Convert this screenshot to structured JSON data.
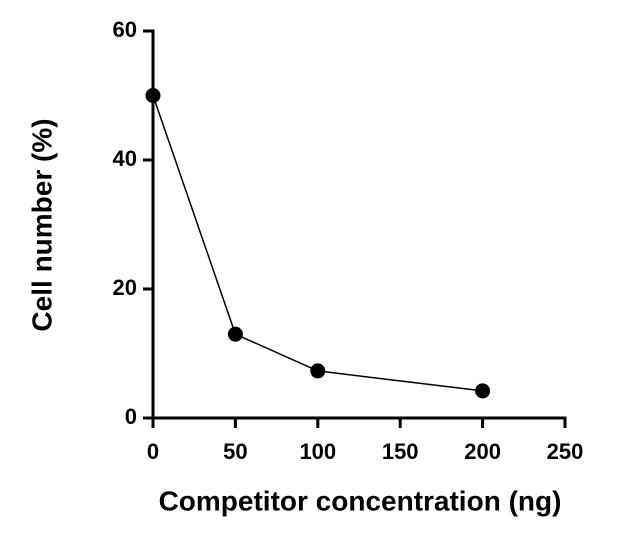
{
  "chart_data": {
    "type": "line",
    "x_label": "Competitor concentration (ng)",
    "y_label": "Cell number (%)",
    "x": [
      0,
      50,
      100,
      200
    ],
    "series": [
      {
        "color": "#000000",
        "values": [
          50,
          13,
          7.3,
          4.2
        ]
      }
    ],
    "xlim": [
      0,
      250
    ],
    "xticks": [
      0,
      50,
      100,
      150,
      200,
      250
    ],
    "ylim": [
      0,
      60
    ],
    "yticks": [
      0,
      20,
      40,
      60
    ],
    "grid": false
  }
}
